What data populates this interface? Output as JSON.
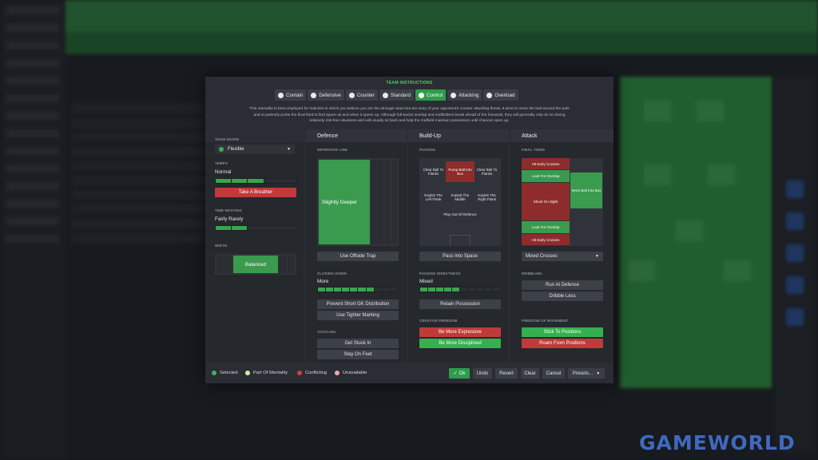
{
  "modal": {
    "title": "TEAM INSTRUCTIONS",
    "mentalities": [
      {
        "label": "Contain",
        "selected": false
      },
      {
        "label": "Defensive",
        "selected": false
      },
      {
        "label": "Counter",
        "selected": false
      },
      {
        "label": "Standard",
        "selected": false
      },
      {
        "label": "Control",
        "selected": true
      },
      {
        "label": "Attacking",
        "selected": false
      },
      {
        "label": "Overload",
        "selected": false
      }
    ],
    "description_lines": [
      "This mentality is best employed for matches in which you believe you are the stronger team but are wary of your opponent's counter attacking threat. It aims to move the ball around the park",
      "and to patiently probe the final third to find space as and when it opens up. Although full-backs overlap and midfielders break ahead of the forwards, they will generally only do so during",
      "relatively risk-free situations and will usually sit back and help the midfield maintain possession until chances open up."
    ]
  },
  "team_shape": {
    "shape_label": "TEAM SHAPE",
    "shape_value": "Flexible",
    "tempo_label": "TEMPO",
    "tempo_value": "Normal",
    "tempo_level": 0.6,
    "tempo_button": "Take A Breather",
    "time_wasting_label": "TIME WASTING",
    "time_wasting_value": "Fairly Rarely",
    "time_wasting_level": 0.4,
    "width_label": "WIDTH",
    "width_value": "Balanced"
  },
  "defence": {
    "title": "Defence",
    "defensive_line_label": "DEFENSIVE LINE",
    "defensive_line_value": "Slightly Deeper",
    "offside_button": "Use Offside Trap",
    "closing_down_label": "CLOSING DOWN",
    "closing_down_value": "More",
    "closing_down_level": 0.7,
    "buttons": [
      "Prevent Short GK Distribution",
      "Use Tighter Marking"
    ],
    "tackling_label": "TACKLING",
    "tackling_buttons": [
      "Get Stuck In",
      "Stay On Feet"
    ]
  },
  "buildup": {
    "title": "Build-Up",
    "passing_label": "PASSING",
    "zones": {
      "left_top": "Clear Ball To Flanks",
      "center_top": "Pump Ball Into Box",
      "right_top": "Clear Ball To Flanks",
      "left_mid": "Exploit The Left Flank",
      "center_mid": "Exploit The Middle",
      "right_mid": "Exploit The Right Flank",
      "bottom": "Play Out Of Defence"
    },
    "pass_space_button": "Pass Into Space",
    "directness_label": "PASSING DIRECTNESS",
    "directness_value": "Mixed",
    "directness_level": 0.5,
    "retain_button": "Retain Possession",
    "creative_label": "CREATIVE FREEDOM",
    "expressive_button": "Be More Expressive",
    "disciplined_button": "Be More Disciplined"
  },
  "attack": {
    "title": "Attack",
    "final_third_label": "FINAL THIRD",
    "zones": {
      "hit_top": "Hit Early Crosses",
      "look_top": "Look For Overlap",
      "shoot": "Shoot On Sight",
      "work": "Work Ball Into Box",
      "look_bottom": "Look For Overlap",
      "hit_bottom": "Hit Early Crosses"
    },
    "crosses_value": "Mixed Crosses",
    "dribbling_label": "DRIBBLING",
    "dribbling_buttons": [
      "Run At Defence",
      "Dribble Less"
    ],
    "freedom_label": "FREEDOM OF MOVEMENT",
    "stick_button": "Stick To Positions",
    "roam_button": "Roam From Positions"
  },
  "legend": [
    {
      "label": "Selected",
      "color": "#3fb55a"
    },
    {
      "label": "Part Of Mentality",
      "color": "#c9f0a8"
    },
    {
      "label": "Conflicting",
      "color": "#d24040"
    },
    {
      "label": "Unavailable",
      "color": "#f0a8b0"
    }
  ],
  "footer_buttons": {
    "ok": "Ok",
    "undo": "Undo",
    "revert": "Revert",
    "clear": "Clear",
    "cancel": "Cancel",
    "presets": "Presets..."
  },
  "watermark": "GAMEWORLD",
  "colors": {
    "selected": "#34b04f",
    "conflict": "#c03a3a",
    "pitch": "#3a9a4e"
  }
}
